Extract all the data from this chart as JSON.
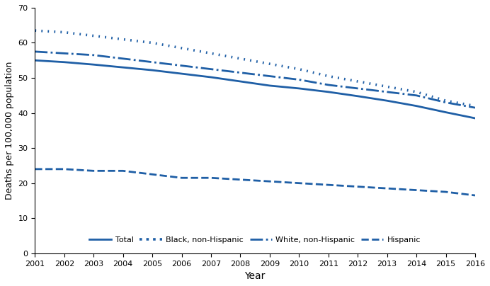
{
  "years": [
    2001,
    2002,
    2003,
    2004,
    2005,
    2006,
    2007,
    2008,
    2009,
    2010,
    2011,
    2012,
    2013,
    2014,
    2015,
    2016
  ],
  "total": [
    55.0,
    54.5,
    53.8,
    53.0,
    52.2,
    51.2,
    50.2,
    49.0,
    47.8,
    47.0,
    46.0,
    44.8,
    43.5,
    42.0,
    40.2,
    38.5
  ],
  "black_nonhisp": [
    63.5,
    63.0,
    62.0,
    61.0,
    60.0,
    58.5,
    57.0,
    55.5,
    54.0,
    52.5,
    50.5,
    49.0,
    47.5,
    46.0,
    43.5,
    42.0
  ],
  "white_nonhisp": [
    57.5,
    57.0,
    56.5,
    55.5,
    54.5,
    53.5,
    52.5,
    51.5,
    50.5,
    49.5,
    48.0,
    47.0,
    46.0,
    45.0,
    43.0,
    41.5
  ],
  "hispanic": [
    24.0,
    24.0,
    23.5,
    23.5,
    22.5,
    21.5,
    21.5,
    21.0,
    20.5,
    20.0,
    19.5,
    19.0,
    18.5,
    18.0,
    17.5,
    16.5
  ],
  "color": "#1F5FA6",
  "ylabel": "Deaths per 100,000 population",
  "xlabel": "Year",
  "ylim": [
    0,
    70
  ],
  "yticks": [
    0,
    10,
    20,
    30,
    40,
    50,
    60,
    70
  ],
  "legend_labels": [
    "Total",
    "Black, non-Hispanic",
    "White, non-Hispanic",
    "Hispanic"
  ],
  "line_styles": [
    "solid",
    "dotted",
    "dashdot",
    "dashed"
  ],
  "linewidth": 2.0,
  "figsize": [
    6.92,
    4.04
  ],
  "dpi": 100
}
